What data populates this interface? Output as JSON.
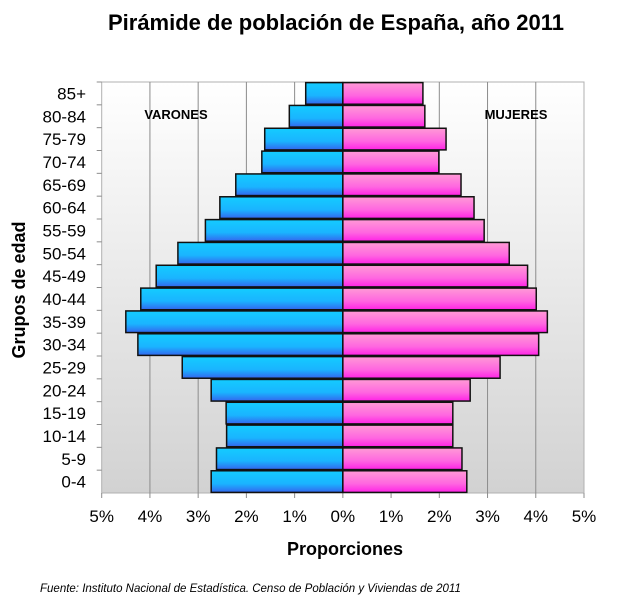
{
  "chart_data": {
    "type": "bar",
    "orientation": "horizontal-population-pyramid",
    "title": "Pirámide de población de España, año 2011",
    "xlabel": "Proporciones",
    "ylabel": "Grupos de edad",
    "source": "Fuente: Instituto Nacional de Estadística. Censo de Población y Viviendas de 2011",
    "xlim": [
      -5,
      5
    ],
    "x_ticks": [
      "5%",
      "4%",
      "3%",
      "2%",
      "1%",
      "0%",
      "1%",
      "2%",
      "3%",
      "4%",
      "5%"
    ],
    "grid": true,
    "categories": [
      "85+",
      "80-84",
      "75-79",
      "70-74",
      "65-69",
      "60-64",
      "55-59",
      "50-54",
      "45-49",
      "40-44",
      "35-39",
      "30-34",
      "25-29",
      "20-24",
      "15-19",
      "10-14",
      "5-9",
      "0-4"
    ],
    "series": [
      {
        "name": "VARONES",
        "side": "left",
        "color": "#1ab8ff",
        "values": [
          0.77,
          1.11,
          1.62,
          1.68,
          2.22,
          2.55,
          2.85,
          3.42,
          3.87,
          4.19,
          4.5,
          4.25,
          3.33,
          2.73,
          2.42,
          2.41,
          2.62,
          2.73
        ]
      },
      {
        "name": "MUJERES",
        "side": "right",
        "color": "#ff66e0",
        "values": [
          1.66,
          1.7,
          2.14,
          1.99,
          2.45,
          2.72,
          2.93,
          3.45,
          3.83,
          4.01,
          4.24,
          4.06,
          3.26,
          2.64,
          2.28,
          2.28,
          2.47,
          2.57
        ]
      }
    ]
  }
}
